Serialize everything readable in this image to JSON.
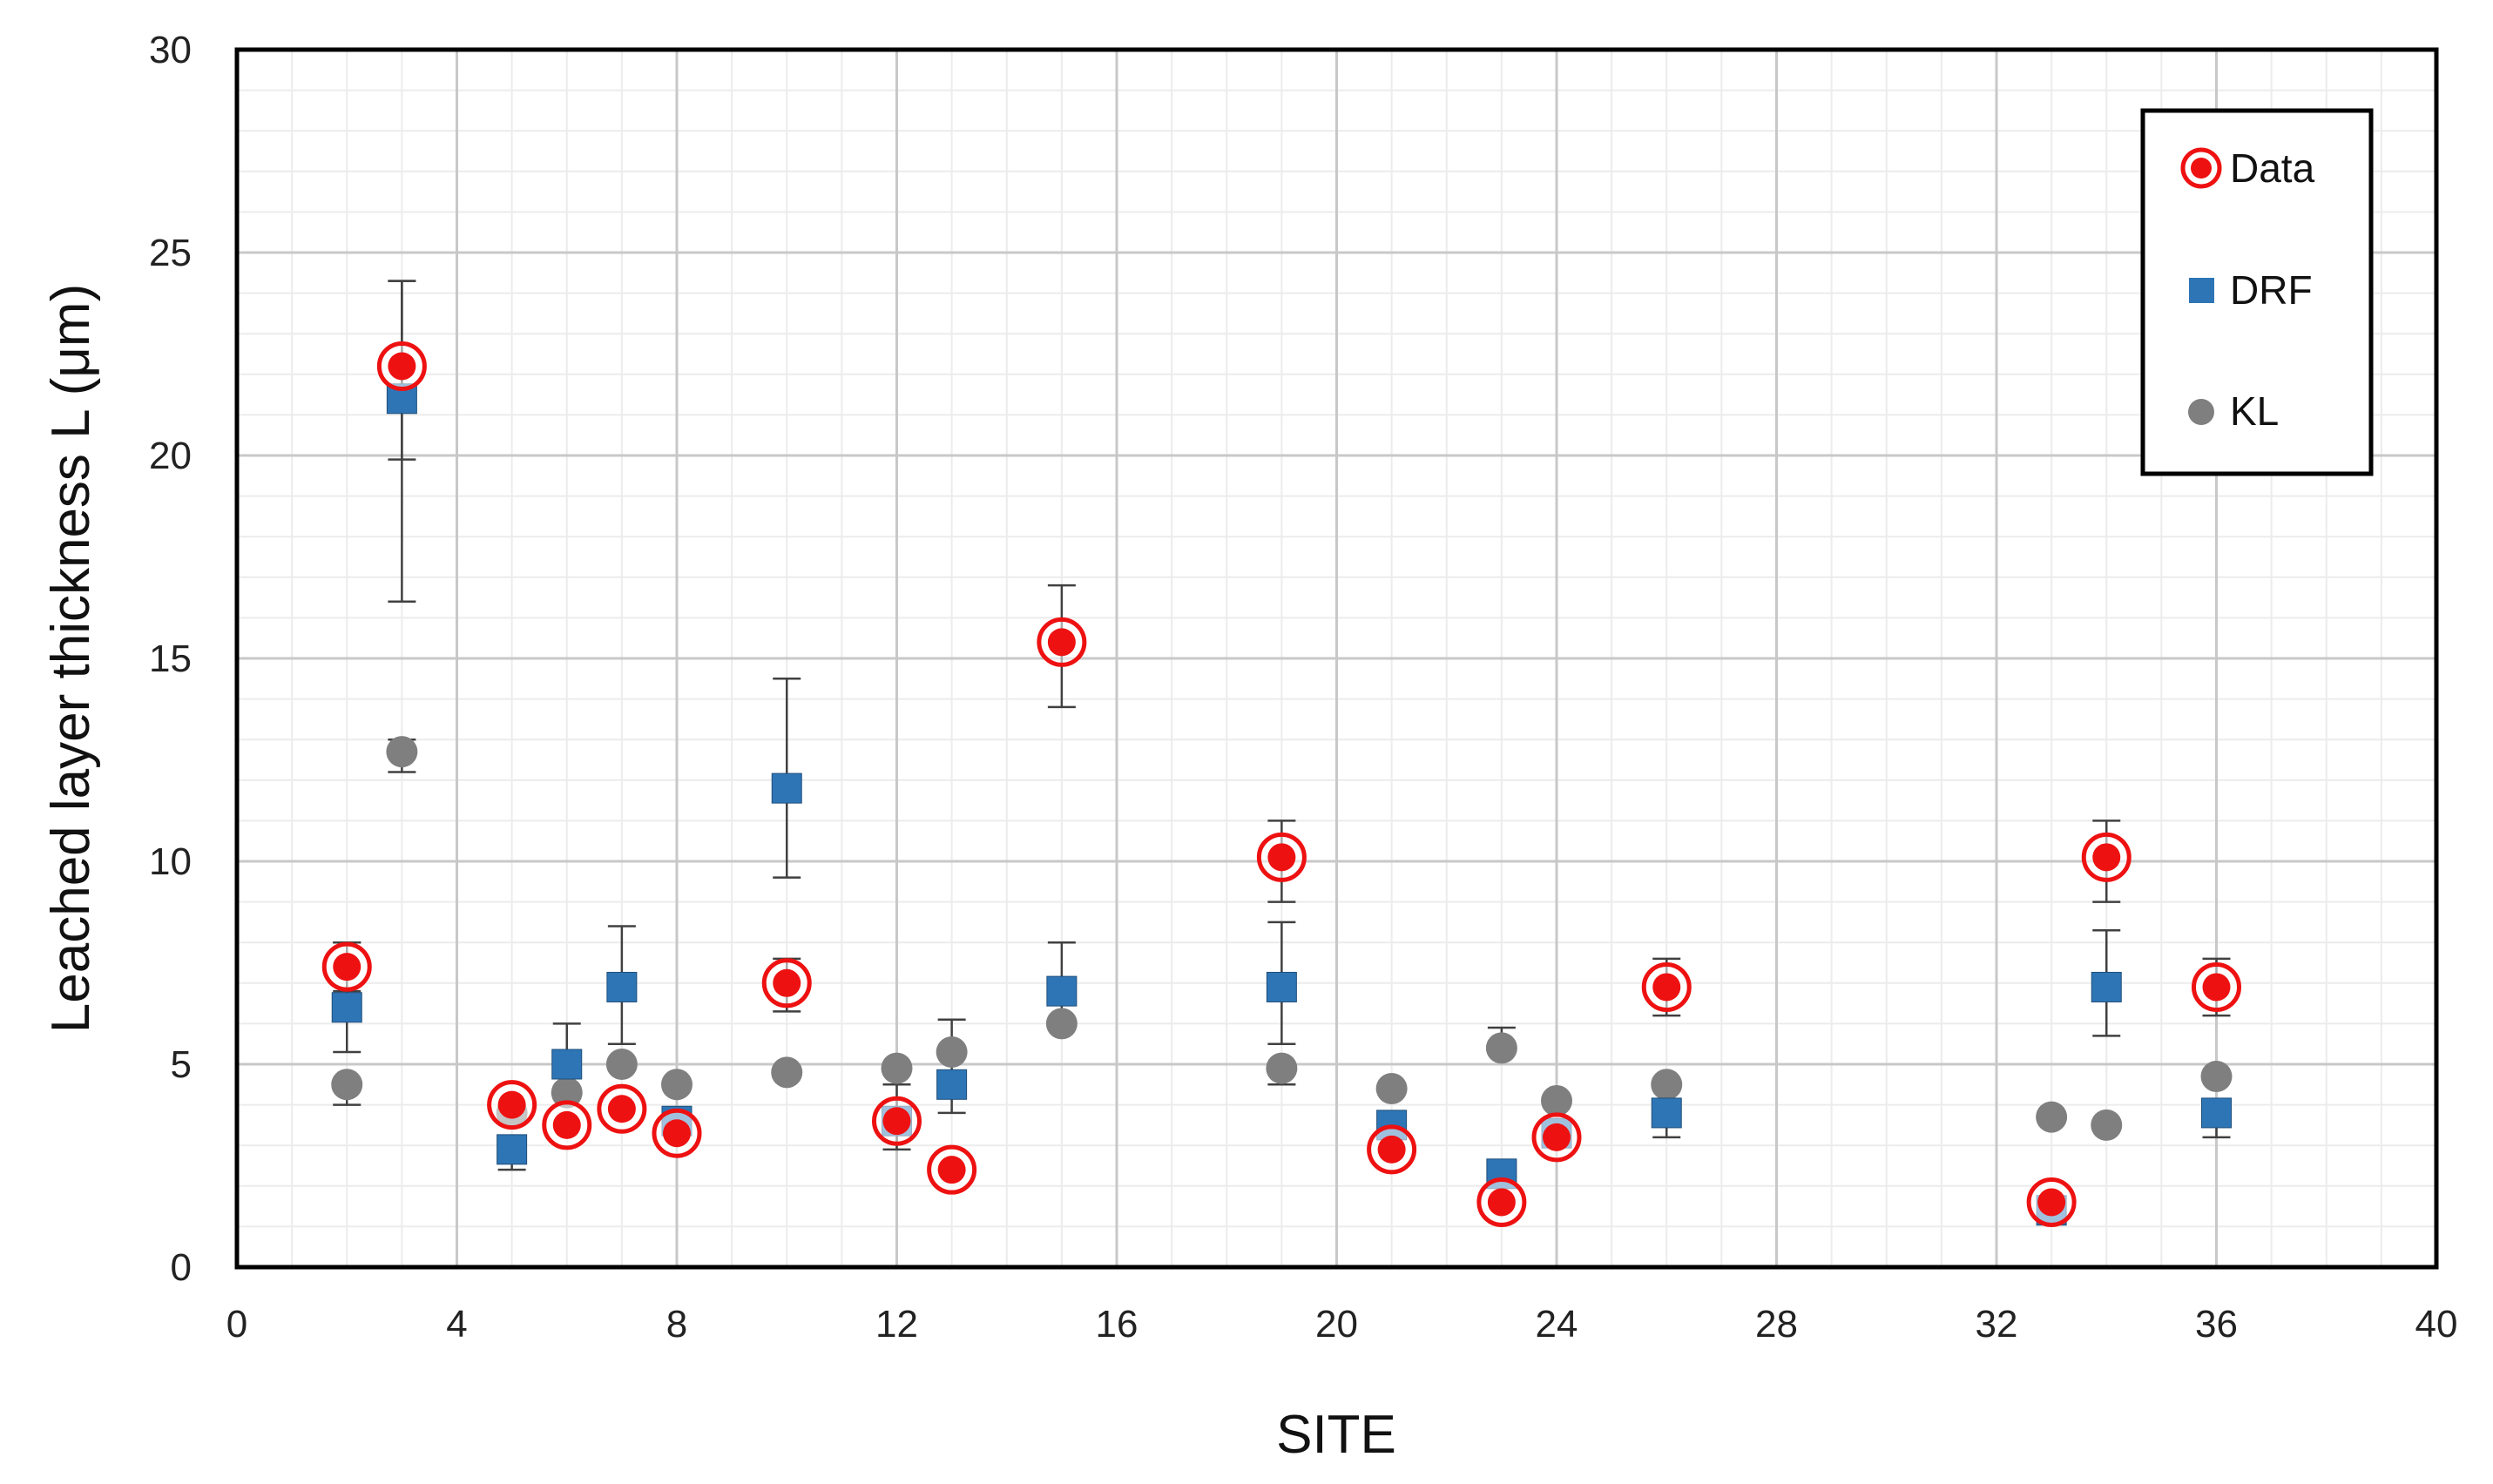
{
  "chart_data": {
    "type": "scatter",
    "title": "",
    "xlabel": "SITE",
    "ylabel": "Leached layer thickness L (μm)",
    "xlim": [
      0,
      40
    ],
    "ylim": [
      0,
      30
    ],
    "x_ticks": [
      0,
      4,
      8,
      12,
      16,
      20,
      24,
      28,
      32,
      36,
      40
    ],
    "y_ticks": [
      0,
      5,
      10,
      15,
      20,
      25,
      30
    ],
    "x_tick_labels": [
      "0",
      "4",
      "8",
      "12",
      "16",
      "20",
      "24",
      "28",
      "32",
      "36",
      "40"
    ],
    "y_tick_labels": [
      "0",
      "5",
      "10",
      "15",
      "20",
      "25",
      "30"
    ],
    "grid": true,
    "legend_position": "top-right",
    "series": [
      {
        "name": "Data",
        "marker": "double-circle",
        "color": "#ee1111",
        "points": [
          {
            "x": 2,
            "y": 7.4,
            "err_low": 0.6,
            "err_high": 0.6
          },
          {
            "x": 3,
            "y": 22.2,
            "err_low": 2.3,
            "err_high": 2.1
          },
          {
            "x": 5,
            "y": 4.0
          },
          {
            "x": 6,
            "y": 3.5
          },
          {
            "x": 7,
            "y": 3.9
          },
          {
            "x": 8,
            "y": 3.3
          },
          {
            "x": 10,
            "y": 7.0,
            "err_low": 0.7,
            "err_high": 0.6
          },
          {
            "x": 12,
            "y": 3.6
          },
          {
            "x": 13,
            "y": 2.4
          },
          {
            "x": 15,
            "y": 15.4,
            "err_low": 1.6,
            "err_high": 1.4
          },
          {
            "x": 19,
            "y": 10.1,
            "err_low": 1.1,
            "err_high": 0.9
          },
          {
            "x": 21,
            "y": 2.9
          },
          {
            "x": 23,
            "y": 1.6
          },
          {
            "x": 24,
            "y": 3.2
          },
          {
            "x": 26,
            "y": 6.9,
            "err_low": 0.7,
            "err_high": 0.7
          },
          {
            "x": 33,
            "y": 1.6
          },
          {
            "x": 34,
            "y": 10.1,
            "err_low": 1.1,
            "err_high": 0.9
          },
          {
            "x": 36,
            "y": 6.9,
            "err_low": 0.7,
            "err_high": 0.7
          }
        ]
      },
      {
        "name": "DRF",
        "marker": "square",
        "color": "#2e75b6",
        "points": [
          {
            "x": 2,
            "y": 6.4,
            "err_low": 1.1,
            "err_high": 1.6
          },
          {
            "x": 3,
            "y": 21.4,
            "err_low": 5.0,
            "err_high": 2.9
          },
          {
            "x": 5,
            "y": 2.9,
            "err_low": 0.5
          },
          {
            "x": 6,
            "y": 5.0,
            "err_high": 1.0
          },
          {
            "x": 7,
            "y": 6.9,
            "err_low": 1.4,
            "err_high": 1.5
          },
          {
            "x": 8,
            "y": 3.6
          },
          {
            "x": 10,
            "y": 11.8,
            "err_low": 2.2,
            "err_high": 2.7
          },
          {
            "x": 12,
            "y": 3.6,
            "err_low": 0.7,
            "err_high": 0.9
          },
          {
            "x": 13,
            "y": 4.5,
            "err_low": 0.7,
            "err_high": 1.6
          },
          {
            "x": 15,
            "y": 6.8,
            "err_low": 0.7,
            "err_high": 1.2
          },
          {
            "x": 19,
            "y": 6.9,
            "err_low": 1.4,
            "err_high": 1.6
          },
          {
            "x": 21,
            "y": 3.5
          },
          {
            "x": 23,
            "y": 2.3
          },
          {
            "x": 24,
            "y": 3.3
          },
          {
            "x": 26,
            "y": 3.8,
            "err_low": 0.6
          },
          {
            "x": 33,
            "y": 1.4
          },
          {
            "x": 34,
            "y": 6.9,
            "err_low": 1.2,
            "err_high": 1.4
          },
          {
            "x": 36,
            "y": 3.8,
            "err_low": 0.6
          }
        ]
      },
      {
        "name": "KL",
        "marker": "circle",
        "color": "#7f7f7f",
        "points": [
          {
            "x": 2,
            "y": 4.5,
            "err_low": 0.5
          },
          {
            "x": 3,
            "y": 12.7,
            "err_low": 0.5,
            "err_high": 0.3
          },
          {
            "x": 5,
            "y": 3.8
          },
          {
            "x": 6,
            "y": 4.3
          },
          {
            "x": 7,
            "y": 5.0
          },
          {
            "x": 8,
            "y": 4.5
          },
          {
            "x": 10,
            "y": 4.8
          },
          {
            "x": 12,
            "y": 4.9
          },
          {
            "x": 13,
            "y": 5.3
          },
          {
            "x": 15,
            "y": 6.0
          },
          {
            "x": 19,
            "y": 4.9,
            "err_low": 0.4
          },
          {
            "x": 21,
            "y": 4.4
          },
          {
            "x": 23,
            "y": 5.4,
            "err_high": 0.5
          },
          {
            "x": 24,
            "y": 4.1
          },
          {
            "x": 26,
            "y": 4.5
          },
          {
            "x": 33,
            "y": 3.7
          },
          {
            "x": 34,
            "y": 3.5
          },
          {
            "x": 36,
            "y": 4.7
          }
        ]
      }
    ]
  }
}
